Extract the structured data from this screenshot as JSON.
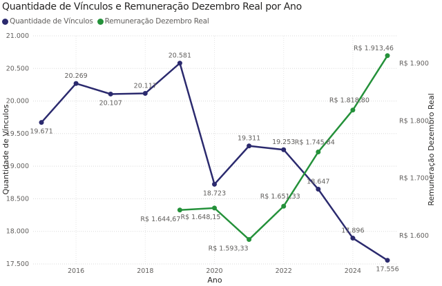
{
  "chart_data": {
    "type": "line",
    "title": "Quantidade de Vínculos e Remuneração Dezembro Real por Ano",
    "xlabel": "Ano",
    "ylabel": "Quantidade de Vínculos",
    "y2label": "Remuneração Dezembro Real",
    "x": [
      2015,
      2016,
      2017,
      2018,
      2019,
      2020,
      2021,
      2022,
      2023,
      2024,
      2025
    ],
    "xticks": [
      "2016",
      "2018",
      "2020",
      "2022",
      "2024"
    ],
    "ylim": [
      17500,
      21000
    ],
    "yticks": [
      "17.500",
      "18.000",
      "18.500",
      "19.000",
      "19.500",
      "20.000",
      "20.500",
      "21.000"
    ],
    "y2lim": [
      1550,
      1920
    ],
    "y2ticks": [
      "R$ 1.600",
      "R$ 1.700",
      "R$ 1.800",
      "R$ 1.900"
    ],
    "grid": true,
    "legend_position": "top-left",
    "series": [
      {
        "name": "Quantidade de Vínculos",
        "axis": "left",
        "color": "#2B2A6E",
        "values": [
          19671,
          20269,
          20107,
          20117,
          20581,
          18723,
          19311,
          19253,
          18647,
          17896,
          17556
        ],
        "labels": [
          "19.671",
          "20.269",
          "20.107",
          "20.117",
          "20.581",
          "18.723",
          "19.311",
          "19.253",
          "18.647",
          "17.896",
          "17.556"
        ]
      },
      {
        "name": "Remuneração Dezembro Real",
        "axis": "right",
        "color": "#24913A",
        "values": [
          null,
          null,
          null,
          null,
          1644.67,
          1648.15,
          1593.33,
          1651.33,
          1745.84,
          1818.8,
          1913.46
        ],
        "labels": [
          null,
          null,
          null,
          null,
          "R$ 1.644,67",
          "R$ 1.648,15",
          "R$ 1.593,33",
          "R$ 1.651,33",
          "R$ 1.745,84",
          "R$ 1.818,80",
          "R$ 1.913,46"
        ]
      }
    ]
  }
}
